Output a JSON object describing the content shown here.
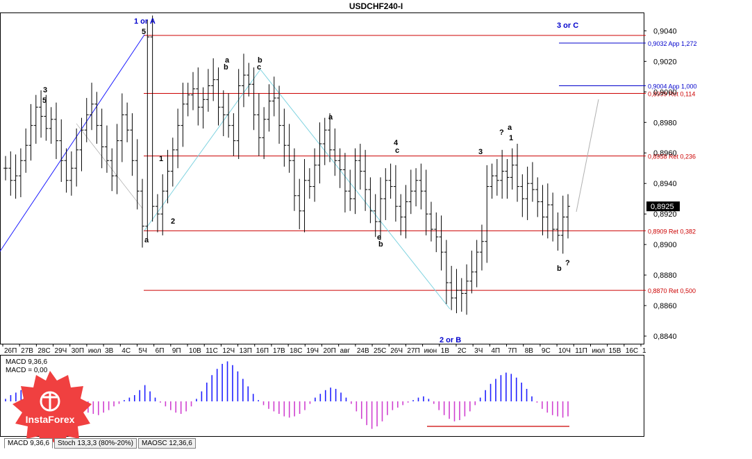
{
  "window": {
    "title": "USDCHF240-I"
  },
  "chart_data": {
    "type": "candlestick",
    "title": "USDCHF240-I",
    "symbol": "USDCHF",
    "timeframe": "H4",
    "ylim": [
      0.8835,
      0.9052
    ],
    "current_price": "0,8925",
    "y_ticks": [
      "0,9040",
      "0,9020",
      "0,9000",
      "0,8980",
      "0,8960",
      "0,8940",
      "0,8920",
      "0,8900",
      "0,8880",
      "0,8860",
      "0,8840"
    ],
    "y_tick_values": [
      0.904,
      0.902,
      0.9,
      0.898,
      0.896,
      0.894,
      0.892,
      0.89,
      0.888,
      0.886,
      0.884
    ],
    "x_ticks": [
      "26П",
      "27В",
      "28С",
      "29Ч",
      "30П",
      "июл",
      "3В",
      "4С",
      "5Ч",
      "6П",
      "9П",
      "10В",
      "11С",
      "12Ч",
      "13П",
      "16П",
      "17В",
      "18С",
      "19Ч",
      "20П",
      "авг",
      "24В",
      "25С",
      "26Ч",
      "27П",
      "июн",
      "1В",
      "2С",
      "3Ч",
      "4П",
      "7П",
      "8В",
      "9С",
      "10Ч",
      "11П",
      "июл",
      "15В",
      "16С",
      "1"
    ],
    "levels": [
      {
        "price": 0.9037,
        "label": ""
      },
      {
        "price": 0.8999,
        "label": "0,8999 Ret 0,114"
      },
      {
        "price": 0.8958,
        "label": "0,8958 Ret 0,236"
      },
      {
        "price": 0.8909,
        "label": "0,8909 Ret 0,382"
      },
      {
        "price": 0.887,
        "label": "0,8870 Ret 0,500"
      }
    ],
    "targets": [
      {
        "price": 0.9032,
        "label": "0,9032 App 1,272"
      },
      {
        "price": 0.9004,
        "label": "0,9004 App 1,000"
      }
    ],
    "series": [
      {
        "name": "price",
        "close": [
          0.895,
          0.8942,
          0.8945,
          0.8955,
          0.8965,
          0.8978,
          0.899,
          0.8984,
          0.8976,
          0.8982,
          0.8968,
          0.8955,
          0.8942,
          0.895,
          0.8962,
          0.8975,
          0.8985,
          0.8992,
          0.8978,
          0.8964,
          0.8955,
          0.8945,
          0.8968,
          0.8985,
          0.8975,
          0.8955,
          0.8935,
          0.8912,
          0.9036,
          0.8925,
          0.892,
          0.8935,
          0.8948,
          0.8962,
          0.8978,
          0.8992,
          0.8998,
          0.9002,
          0.899,
          0.8995,
          0.9004,
          0.9008,
          0.899,
          0.8985,
          0.8978,
          0.8968,
          0.9004,
          0.9011,
          0.9005,
          0.8985,
          0.897,
          0.8982,
          0.8994,
          0.8996,
          0.8978,
          0.8965,
          0.8955,
          0.8932,
          0.8922,
          0.8942,
          0.8938,
          0.8952,
          0.8966,
          0.8975,
          0.8962,
          0.8955,
          0.8949,
          0.8935,
          0.893,
          0.8955,
          0.8948,
          0.8936,
          0.8922,
          0.8915,
          0.893,
          0.8942,
          0.8938,
          0.8925,
          0.8918,
          0.8928,
          0.8935,
          0.8942,
          0.8935,
          0.892,
          0.891,
          0.8905,
          0.8895,
          0.8875,
          0.8865,
          0.887,
          0.8868,
          0.8876,
          0.8882,
          0.8895,
          0.8902,
          0.8938,
          0.8945,
          0.8942,
          0.8948,
          0.8944,
          0.8952,
          0.8938,
          0.893,
          0.894,
          0.8936,
          0.8928,
          0.8918,
          0.8926,
          0.891,
          0.8906,
          0.8918,
          0.8925
        ]
      }
    ],
    "annotations": [
      {
        "text": "1 or A",
        "color": "#0000cc"
      },
      {
        "text": "3 or C",
        "color": "#0000cc"
      },
      {
        "text": "2 or B",
        "color": "#0000cc"
      },
      {
        "text": "5"
      },
      {
        "text": "3"
      },
      {
        "text": "5"
      },
      {
        "text": "b"
      },
      {
        "text": "a"
      },
      {
        "text": "b"
      },
      {
        "text": "c"
      },
      {
        "text": "a"
      },
      {
        "text": "4"
      },
      {
        "text": "c"
      },
      {
        "text": "b"
      },
      {
        "text": "e"
      },
      {
        "text": "a"
      },
      {
        "text": "1"
      },
      {
        "text": "2"
      },
      {
        "text": "3"
      },
      {
        "text": "?"
      },
      {
        "text": "a"
      },
      {
        "text": "1"
      },
      {
        "text": "b"
      },
      {
        "text": "?"
      }
    ]
  },
  "indicators": {
    "macd": {
      "label": "MACD 9,36,6",
      "value_label": "MACD = 0,00"
    },
    "macd_values": [
      0.2,
      0.5,
      0.7,
      0.9,
      0.8,
      0.6,
      0.9,
      1.1,
      1.0,
      0.8,
      0.6,
      0.4,
      0.1,
      -0.2,
      -0.5,
      -0.7,
      -0.9,
      -1.0,
      -1.1,
      -0.9,
      -0.7,
      -0.4,
      -0.2,
      0.1,
      0.3,
      0.5,
      0.9,
      1.3,
      0.8,
      0.3,
      -0.1,
      -0.4,
      -0.7,
      -0.9,
      -1.0,
      -0.8,
      -0.4,
      0.2,
      0.8,
      1.5,
      2.1,
      2.6,
      3.0,
      3.2,
      2.9,
      2.4,
      1.8,
      1.2,
      0.6,
      0.1,
      -0.3,
      -0.6,
      -0.8,
      -1.0,
      -1.2,
      -1.3,
      -1.2,
      -1.0,
      -0.7,
      -0.2,
      0.3,
      0.6,
      0.9,
      1.1,
      1.0,
      0.7,
      0.3,
      -0.2,
      -0.8,
      -1.4,
      -1.9,
      -2.2,
      -2.0,
      -1.6,
      -1.1,
      -0.7,
      -0.5,
      -0.3,
      -0.1,
      0.1,
      0.3,
      0.4,
      0.2,
      -0.2,
      -0.7,
      -1.1,
      -1.4,
      -1.6,
      -1.5,
      -1.2,
      -0.8,
      -0.3,
      0.3,
      0.9,
      1.4,
      1.8,
      2.1,
      2.3,
      2.2,
      1.9,
      1.5,
      1.0,
      0.4,
      -0.1,
      -0.6,
      -0.9,
      -1.1,
      -1.2,
      -1.3,
      -1.2
    ],
    "tabs": [
      {
        "label": "MACD 9,36,6"
      },
      {
        "label": "Stoch 13,3,3 (80%-20%)"
      },
      {
        "label": "MAOSC 12,36,6"
      }
    ]
  },
  "brand": {
    "logo_text": "InstaForex"
  },
  "colors": {
    "bull_bar": "#000000",
    "level_line": "#cc0000",
    "target_line": "#0000cc",
    "channel_line": "#1a1aff",
    "wave_line": "#7fd3e0",
    "projection_line": "#b0b0b0",
    "macd_pos": "#2020ff",
    "macd_neg": "#d040d0",
    "logo_bg": "#f04040"
  }
}
